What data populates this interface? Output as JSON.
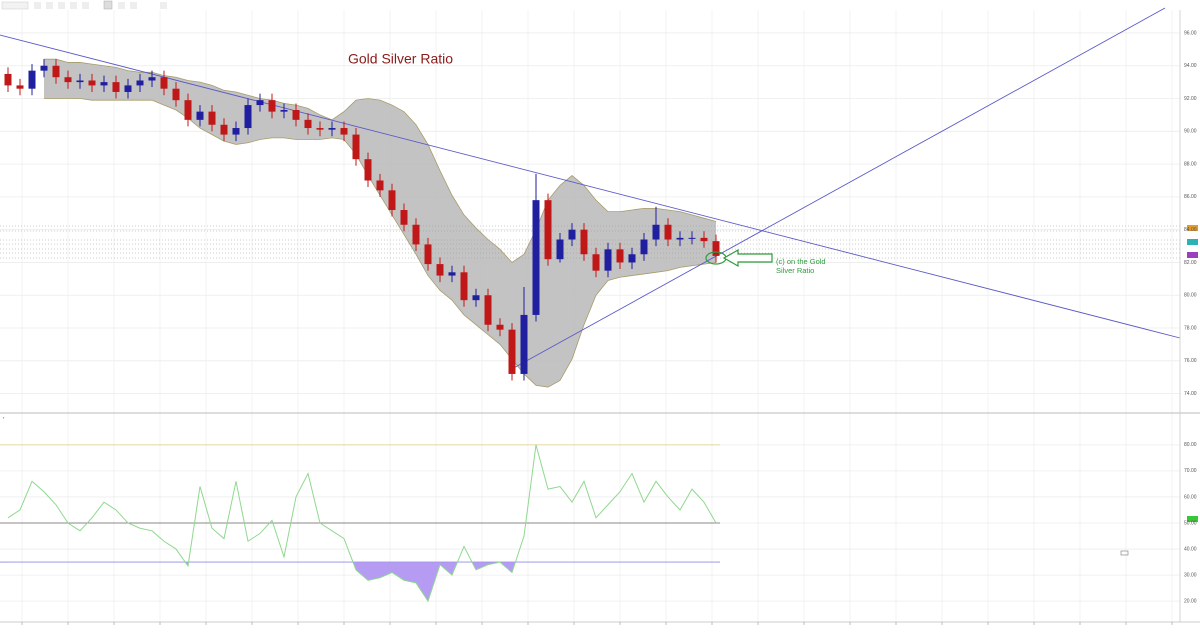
{
  "chart_data": [
    {
      "type": "candlestick",
      "title": "Gold Silver Ratio",
      "annotation": "(c) on the Gold Silver Ratio",
      "open": [
        93.5,
        92.8,
        92.6,
        93.7,
        94.0,
        93.3,
        93.0,
        93.1,
        92.8,
        93.0,
        92.4,
        92.8,
        93.1,
        93.3,
        92.6,
        91.9,
        90.7,
        91.2,
        90.4,
        89.8,
        90.2,
        91.6,
        91.9,
        91.2,
        91.3,
        90.7,
        90.2,
        90.1,
        90.2,
        89.8,
        88.3,
        87.0,
        86.4,
        85.2,
        84.3,
        83.1,
        81.9,
        81.2,
        81.4,
        79.7,
        80.0,
        78.2,
        77.9,
        75.2,
        78.8,
        85.8,
        82.2,
        83.4,
        84.0,
        82.5,
        81.5,
        82.8,
        82.0,
        82.5,
        83.4,
        84.3,
        83.4,
        83.5,
        83.5,
        83.3
      ],
      "high": [
        93.9,
        93.2,
        94.1,
        94.4,
        94.4,
        93.7,
        93.5,
        93.5,
        93.4,
        93.4,
        93.2,
        93.5,
        93.7,
        93.7,
        93.0,
        92.3,
        91.6,
        91.6,
        90.8,
        90.6,
        92.0,
        92.3,
        92.3,
        91.7,
        91.7,
        91.1,
        90.6,
        90.6,
        90.6,
        90.2,
        88.7,
        87.4,
        86.8,
        85.6,
        84.7,
        83.5,
        82.3,
        81.8,
        81.8,
        80.4,
        80.4,
        78.6,
        78.3,
        80.5,
        87.4,
        86.2,
        83.8,
        84.4,
        84.4,
        82.9,
        83.2,
        83.2,
        82.9,
        83.8,
        85.4,
        84.7,
        83.9,
        83.9,
        83.9,
        83.7
      ],
      "low": [
        92.4,
        92.2,
        92.2,
        93.3,
        92.9,
        92.6,
        92.6,
        92.4,
        92.4,
        92.0,
        92.0,
        92.4,
        92.7,
        92.2,
        91.5,
        90.3,
        90.3,
        90.0,
        89.4,
        89.4,
        89.8,
        91.2,
        90.8,
        90.8,
        90.3,
        89.8,
        89.7,
        89.7,
        89.4,
        87.9,
        86.6,
        86.0,
        84.8,
        83.9,
        82.7,
        81.5,
        80.8,
        80.8,
        79.3,
        79.3,
        77.8,
        77.5,
        74.8,
        74.8,
        78.4,
        81.8,
        82.0,
        83.0,
        82.1,
        81.1,
        81.1,
        81.6,
        81.6,
        82.1,
        83.0,
        83.0,
        83.0,
        83.1,
        82.9,
        82.0
      ],
      "close": [
        92.8,
        92.6,
        93.7,
        94.0,
        93.3,
        93.0,
        93.1,
        92.8,
        93.0,
        92.4,
        92.8,
        93.1,
        93.3,
        92.6,
        91.9,
        90.7,
        91.2,
        90.4,
        89.8,
        90.2,
        91.6,
        91.9,
        91.2,
        91.3,
        90.7,
        90.2,
        90.1,
        90.2,
        89.8,
        88.3,
        87.0,
        86.4,
        85.2,
        84.3,
        83.1,
        81.9,
        81.2,
        81.4,
        79.7,
        80.0,
        78.2,
        77.9,
        75.2,
        78.8,
        85.8,
        82.2,
        83.4,
        84.0,
        82.5,
        81.5,
        82.8,
        82.0,
        82.5,
        83.4,
        84.3,
        83.4,
        83.5,
        83.5,
        83.3,
        82.4
      ],
      "up_color": "#1f1fa0",
      "down_color": "#c01818",
      "bands": {
        "color": "#bdbdbd",
        "edge_color": "#a89c6a",
        "upper": [
          null,
          null,
          null,
          94.4,
          94.4,
          94.2,
          94.2,
          94.1,
          94.0,
          93.9,
          93.7,
          93.6,
          93.6,
          93.4,
          93.3,
          93.1,
          93.0,
          92.8,
          92.5,
          92.4,
          92.2,
          92.0,
          91.9,
          91.7,
          91.6,
          91.4,
          91.0,
          90.7,
          91.2,
          91.9,
          92.0,
          91.9,
          91.6,
          91.2,
          90.4,
          89.2,
          87.6,
          86.1,
          84.9,
          84.1,
          83.4,
          82.8,
          82.0,
          82.5,
          84.0,
          85.8,
          86.7,
          87.3,
          86.7,
          85.8,
          85.1,
          85.1,
          85.2,
          85.3,
          85.3,
          85.2,
          85.1,
          84.9,
          84.7,
          84.5
        ],
        "lower": [
          null,
          null,
          null,
          92.0,
          92.0,
          92.0,
          92.0,
          91.9,
          91.9,
          91.9,
          91.9,
          91.9,
          91.9,
          91.6,
          91.3,
          90.8,
          90.2,
          89.8,
          89.4,
          89.2,
          89.3,
          89.5,
          89.6,
          89.6,
          89.5,
          89.5,
          89.5,
          89.6,
          89.5,
          88.6,
          87.3,
          86.1,
          84.9,
          83.7,
          82.5,
          81.2,
          80.3,
          79.7,
          78.8,
          78.2,
          77.6,
          77.0,
          76.1,
          75.2,
          74.5,
          74.4,
          74.8,
          76.1,
          78.2,
          80.0,
          80.9,
          81.1,
          81.2,
          81.3,
          81.4,
          81.5,
          81.7,
          81.8,
          81.9,
          82.0
        ]
      },
      "ylim": [
        73,
        97.4
      ],
      "yticks": [
        {
          "value": 74,
          "label": "74.00"
        },
        {
          "value": 76,
          "label": "76.00"
        },
        {
          "value": 78,
          "label": "78.00"
        },
        {
          "value": 80,
          "label": "80.00"
        },
        {
          "value": 82,
          "label": "82.00"
        },
        {
          "value": 84,
          "label": "84.00"
        },
        {
          "value": 86,
          "label": "86.00"
        },
        {
          "value": 88,
          "label": "88.00"
        },
        {
          "value": 90,
          "label": "90.00"
        },
        {
          "value": 92,
          "label": "92.00"
        },
        {
          "value": 94,
          "label": "94.00"
        },
        {
          "value": 96,
          "label": "96.00"
        }
      ],
      "grid": true
    },
    {
      "type": "line",
      "values": [
        52,
        55,
        66,
        62,
        57,
        50,
        47,
        52,
        58,
        55,
        50,
        48,
        47,
        43,
        40,
        33.5,
        64,
        48,
        44,
        66,
        43,
        46,
        51,
        37,
        60,
        69,
        50,
        47,
        44,
        32,
        28,
        29,
        31,
        28,
        27,
        20,
        34,
        30,
        41,
        32,
        34,
        35,
        31,
        45,
        80,
        63,
        64,
        58,
        66,
        52,
        57,
        62,
        69,
        58,
        66,
        60,
        55,
        63,
        58,
        50
      ],
      "color": "#8fd88f",
      "fill_below": {
        "color": "#b59cf2"
      },
      "levels": [
        {
          "value": 80,
          "color": "#e3d39a"
        },
        {
          "value": 50,
          "color": "#888888"
        },
        {
          "value": 35,
          "color": "#8a8ae0"
        }
      ],
      "ylim": [
        12,
        88
      ],
      "yticks": [
        {
          "value": 20,
          "label": "20.00"
        },
        {
          "value": 30,
          "label": "30.00"
        },
        {
          "value": 40,
          "label": "40.00"
        },
        {
          "value": 50,
          "label": "50.00"
        },
        {
          "value": 60,
          "label": "60.00"
        },
        {
          "value": 70,
          "label": "70.00"
        },
        {
          "value": 80,
          "label": "80.00"
        }
      ],
      "grid": true
    }
  ]
}
